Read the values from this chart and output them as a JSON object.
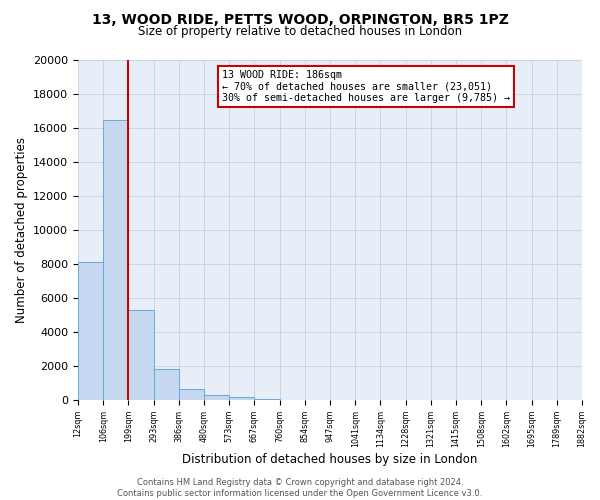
{
  "title": "13, WOOD RIDE, PETTS WOOD, ORPINGTON, BR5 1PZ",
  "subtitle": "Size of property relative to detached houses in London",
  "xlabel": "Distribution of detached houses by size in London",
  "ylabel": "Number of detached properties",
  "bar_values": [
    8100,
    16500,
    5300,
    1800,
    650,
    300,
    150,
    80,
    0,
    0,
    0,
    0,
    0,
    0,
    0,
    0,
    0,
    0,
    0,
    0
  ],
  "categories": [
    "12sqm",
    "106sqm",
    "199sqm",
    "293sqm",
    "386sqm",
    "480sqm",
    "573sqm",
    "667sqm",
    "760sqm",
    "854sqm",
    "947sqm",
    "1041sqm",
    "1134sqm",
    "1228sqm",
    "1321sqm",
    "1415sqm",
    "1508sqm",
    "1602sqm",
    "1695sqm",
    "1789sqm",
    "1882sqm"
  ],
  "bar_color": "#c5d8f0",
  "bar_edge_color": "#6aaad4",
  "vline_x_index": 2,
  "vline_color": "#cc0000",
  "vline_linewidth": 1.5,
  "annotation_title": "13 WOOD RIDE: 186sqm",
  "annotation_line1": "← 70% of detached houses are smaller (23,051)",
  "annotation_line2": "30% of semi-detached houses are larger (9,785) →",
  "annotation_box_color": "white",
  "annotation_box_edge_color": "#cc0000",
  "ylim": [
    0,
    20000
  ],
  "yticks": [
    0,
    2000,
    4000,
    6000,
    8000,
    10000,
    12000,
    14000,
    16000,
    18000,
    20000
  ],
  "grid_color": "#c8d0e0",
  "background_color": "#e8eef8",
  "footer_line1": "Contains HM Land Registry data © Crown copyright and database right 2024.",
  "footer_line2": "Contains public sector information licensed under the Open Government Licence v3.0."
}
